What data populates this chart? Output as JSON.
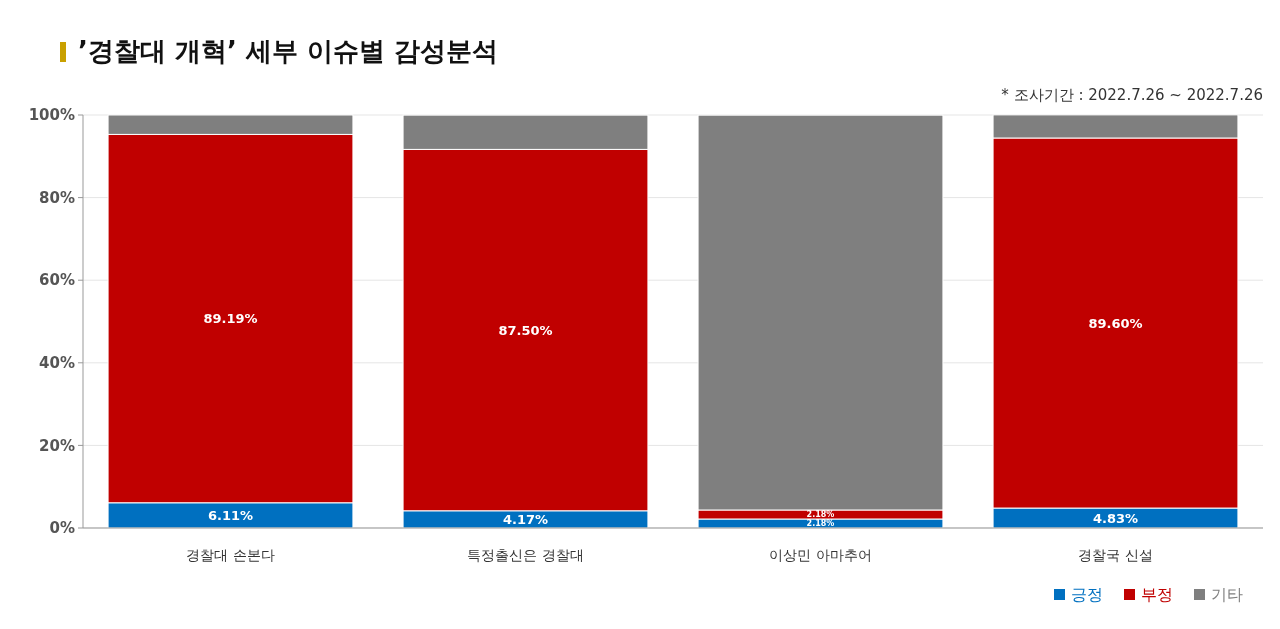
{
  "chart_data": {
    "type": "bar",
    "title": "’경찰대 개혁’ 세부 이슈별 감성분석",
    "annotations": [
      "* 조사기간 : 2022.7.26 ~ 2022.7.26"
    ],
    "categories": [
      "경찰대 손본다",
      "특정출신은 경찰대",
      "이상민 아마추어",
      "경찰국 신설"
    ],
    "stacked": true,
    "series": [
      {
        "name": "긍정",
        "color": "#0070c0",
        "values": [
          6.11,
          4.17,
          2.18,
          4.83
        ],
        "value_labels": [
          "6.11%",
          "4.17%",
          "2.18%",
          "4.83%"
        ]
      },
      {
        "name": "부정",
        "color": "#c00000",
        "values": [
          89.19,
          87.5,
          2.18,
          89.6
        ],
        "value_labels": [
          "89.19%",
          "87.50%",
          "2.18%",
          "89.60%"
        ]
      },
      {
        "name": "기타",
        "color": "#7f7f7f",
        "values": [
          4.7,
          8.3,
          95.6,
          5.6
        ],
        "value_labels": [
          null,
          null,
          null,
          null
        ]
      }
    ],
    "ylim": [
      0,
      100
    ],
    "yticks": [
      {
        "value": 0,
        "label": "0%"
      },
      {
        "value": 20,
        "label": "20%"
      },
      {
        "value": 40,
        "label": "40%"
      },
      {
        "value": 60,
        "label": "60%"
      },
      {
        "value": 80,
        "label": "80%"
      },
      {
        "value": 100,
        "label": "100%"
      }
    ],
    "grid": "y",
    "legend": "bottom right"
  }
}
